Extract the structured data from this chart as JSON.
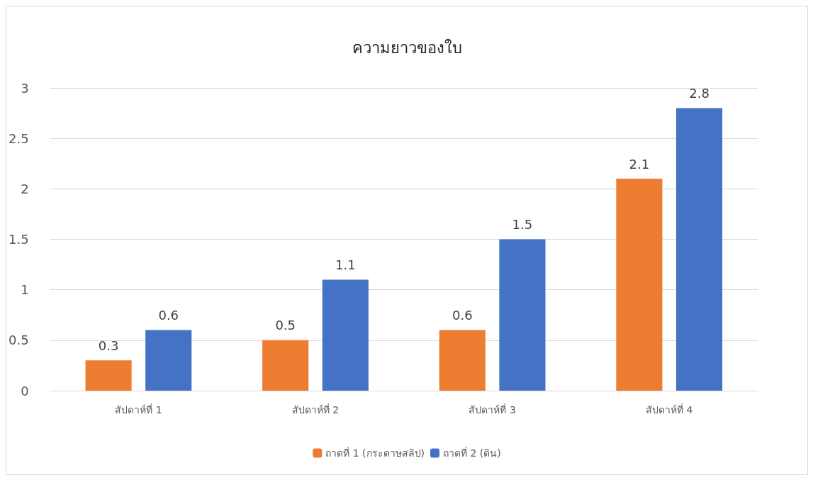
{
  "chart_data": {
    "type": "bar",
    "title": "ความยาวของใบ",
    "categories": [
      "สัปดาห์ที่ 1",
      "สัปดาห์ที่ 2",
      "สัปดาห์ที่ 3",
      "สัปดาห์ที่ 4"
    ],
    "series": [
      {
        "name": "ถาดที่ 1 (กระดาษสลิป)",
        "color": "#ed7d31",
        "values": [
          0.3,
          0.5,
          0.6,
          2.1
        ]
      },
      {
        "name": "ถาดที่ 2 (ดิน)",
        "color": "#4472c4",
        "values": [
          0.6,
          1.1,
          1.5,
          2.8
        ]
      }
    ],
    "ylim": [
      0,
      3
    ],
    "yticks": [
      0,
      0.5,
      1,
      1.5,
      2,
      2.5,
      3
    ],
    "grid": "y",
    "legend": "bottom",
    "data_labels": true
  }
}
